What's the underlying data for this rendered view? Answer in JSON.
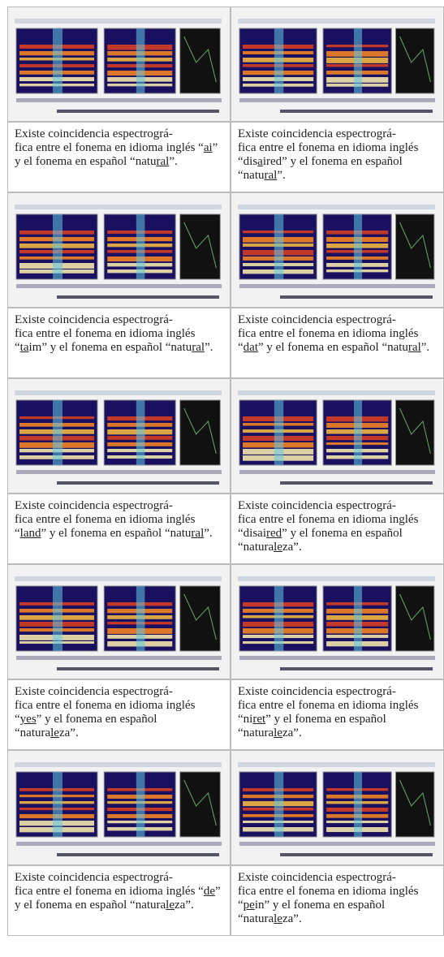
{
  "rows": [
    {
      "left": [
        {
          "text": "Existe coincidencia espectrográ-\nfica entre el fonema en idioma inglés “"
        },
        {
          "text": "ai",
          "u": true
        },
        {
          "text": "” y el fonema en español “natu"
        },
        {
          "text": "ral",
          "u": true
        },
        {
          "text": "”."
        }
      ],
      "right": [
        {
          "text": "Existe coincidencia espectrográ-\nfica entre el fonema en idioma inglés “dis"
        },
        {
          "text": "a",
          "u": true
        },
        {
          "text": "ired” y el fonema en español “natu"
        },
        {
          "text": "ral",
          "u": true
        },
        {
          "text": "”."
        }
      ]
    },
    {
      "left": [
        {
          "text": "Existe coincidencia espectrográ-\nfica entre el fonema en idioma inglés “"
        },
        {
          "text": "ta",
          "u": true
        },
        {
          "text": "im” y el fonema en español “natu"
        },
        {
          "text": "ral",
          "u": true
        },
        {
          "text": "”."
        }
      ],
      "right": [
        {
          "text": "Existe coincidencia espectrográ-\nfica entre el fonema en idioma inglés “"
        },
        {
          "text": "dat",
          "u": true
        },
        {
          "text": "” y el fonema en español “natu"
        },
        {
          "text": "ral",
          "u": true
        },
        {
          "text": "”."
        }
      ]
    },
    {
      "left": [
        {
          "text": "Existe coincidencia espectrográ-\nfica entre el fonema en idioma inglés “"
        },
        {
          "text": "land",
          "u": true
        },
        {
          "text": "” y el fonema en español “natu"
        },
        {
          "text": "ral",
          "u": true
        },
        {
          "text": "”."
        }
      ],
      "right": [
        {
          "text": "Existe coincidencia espectrográ-\nfica entre el fonema en idioma inglés “disai"
        },
        {
          "text": "red",
          "u": true
        },
        {
          "text": "” y el fonema en español “natura"
        },
        {
          "text": "le",
          "u": true
        },
        {
          "text": "za”."
        }
      ]
    },
    {
      "left": [
        {
          "text": "Existe coincidencia espectrográ-\nfica entre el fonema en idioma inglés “"
        },
        {
          "text": "yes",
          "u": true
        },
        {
          "text": "” y el fonema en español “natura"
        },
        {
          "text": "le",
          "u": true
        },
        {
          "text": "za”."
        }
      ],
      "right": [
        {
          "text": "Existe coincidencia espectrográ-\nfica entre el fonema en idioma inglés “ni"
        },
        {
          "text": "ret",
          "u": true
        },
        {
          "text": "” y el fonema en español “natura"
        },
        {
          "text": "le",
          "u": true
        },
        {
          "text": "za”."
        }
      ]
    },
    {
      "left": [
        {
          "text": "Existe coincidencia espectrográ-\nfica entre el fonema en idioma inglés “"
        },
        {
          "text": "de",
          "u": true
        },
        {
          "text": "” y el fonema en español “natura"
        },
        {
          "text": "le",
          "u": true
        },
        {
          "text": "za”."
        }
      ],
      "right": [
        {
          "text": "Existe coincidencia espectrográ-\nfica entre el fonema en idioma inglés “"
        },
        {
          "text": "pe",
          "u": true
        },
        {
          "text": "in” y el fonema en español “natura"
        },
        {
          "text": "le",
          "u": true
        },
        {
          "text": "za”."
        }
      ]
    }
  ]
}
